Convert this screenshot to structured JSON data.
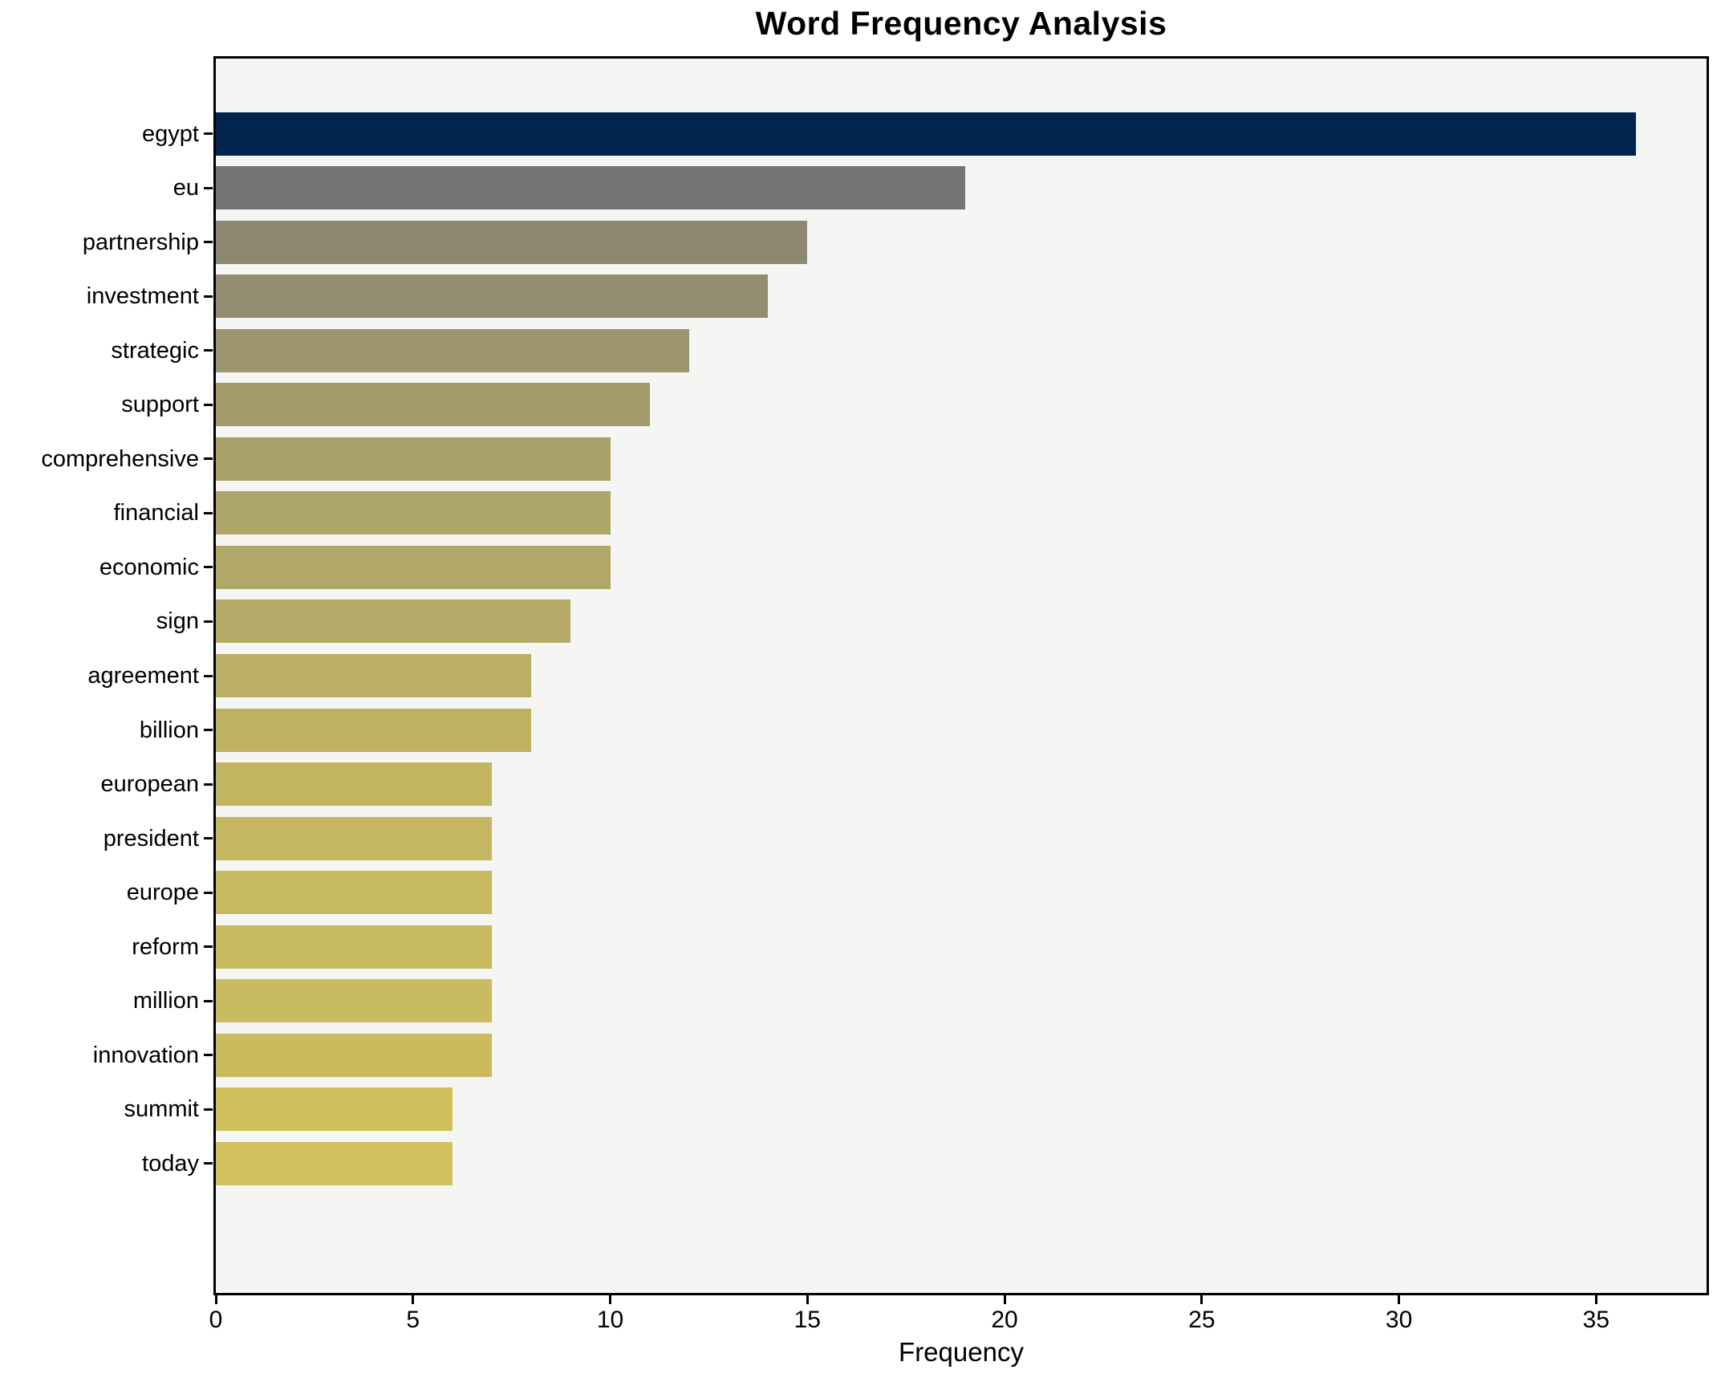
{
  "title": "Word Frequency Analysis",
  "chart_data": {
    "type": "bar",
    "orientation": "horizontal",
    "title": "Word Frequency Analysis",
    "xlabel": "Frequency",
    "ylabel": "",
    "categories": [
      "egypt",
      "eu",
      "partnership",
      "investment",
      "strategic",
      "support",
      "comprehensive",
      "financial",
      "economic",
      "sign",
      "agreement",
      "billion",
      "european",
      "president",
      "europe",
      "reform",
      "million",
      "innovation",
      "summit",
      "today"
    ],
    "values": [
      36,
      19,
      15,
      14,
      12,
      11,
      10,
      10,
      10,
      9,
      8,
      8,
      7,
      7,
      7,
      7,
      7,
      7,
      6,
      6
    ],
    "bar_colors": [
      "#022550",
      "#747477",
      "#8e8873",
      "#938c71",
      "#9d956e",
      "#a39b6c",
      "#aaa16a",
      "#afa669",
      "#b0a769",
      "#b5aa67",
      "#bbaf65",
      "#beb164",
      "#c2b562",
      "#c5b761",
      "#c7b960",
      "#c8ba5f",
      "#c9bb5f",
      "#cabc5e",
      "#d0c05c",
      "#d2c15e"
    ],
    "xlim": [
      0,
      37.8
    ],
    "xticks": [
      "0",
      "5",
      "10",
      "15",
      "20",
      "25",
      "30",
      "35"
    ],
    "grid": false,
    "legend": "none",
    "plot_background": "#f5f5f4",
    "figure_background": "#ffffff",
    "spine_color": "#000000",
    "text_color": "#000000"
  }
}
